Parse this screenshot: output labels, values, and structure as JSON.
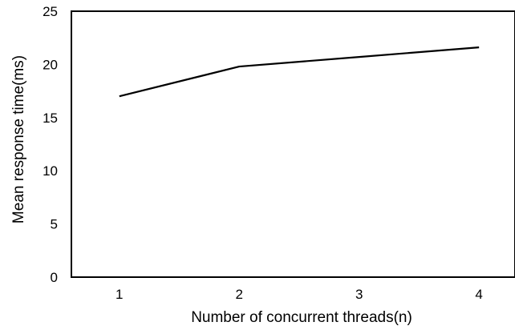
{
  "chart_data": {
    "type": "line",
    "title": "",
    "xlabel": "Number of concurrent threads(n)",
    "ylabel": "Mean response time(ms)",
    "x": [
      1,
      2,
      3,
      4
    ],
    "series": [
      {
        "values": [
          17.0,
          19.8,
          20.7,
          21.6
        ]
      }
    ],
    "xlim": [
      0.6,
      4.3
    ],
    "ylim": [
      0,
      25
    ],
    "xticks": [
      "1",
      "2",
      "3",
      "4"
    ],
    "yticks": [
      "0",
      "5",
      "10",
      "15",
      "20",
      "25"
    ],
    "grid": false,
    "legend": "none",
    "line_color": "#000000"
  }
}
